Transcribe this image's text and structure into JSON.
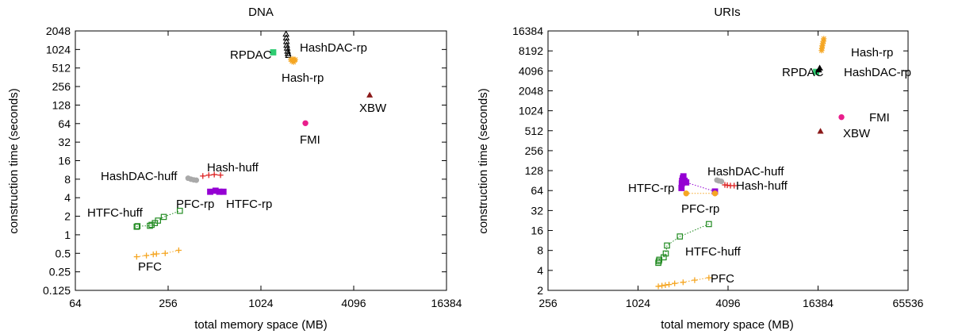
{
  "chart_data": [
    {
      "type": "scatter",
      "title": "DNA",
      "xlabel": "total memory space (MB)",
      "ylabel": "construction time (seconds)",
      "x_scale": "log2",
      "y_scale": "log2",
      "xlim": [
        64,
        16384
      ],
      "ylim": [
        0.125,
        2048
      ],
      "x_ticks": [
        "64",
        "256",
        "1024",
        "4096",
        "16384"
      ],
      "y_ticks": [
        "0.125",
        "0.25",
        "0.5",
        "1",
        "2",
        "4",
        "8",
        "16",
        "32",
        "64",
        "128",
        "256",
        "512",
        "1024",
        "2048"
      ],
      "grid": false,
      "legend": "none",
      "series": [
        {
          "name": "PFC",
          "color": "#f5a623",
          "marker": "plus",
          "line": true,
          "points": [
            [
              160,
              0.44
            ],
            [
              185,
              0.46
            ],
            [
              205,
              0.48
            ],
            [
              215,
              0.49
            ],
            [
              245,
              0.5
            ],
            [
              300,
              0.56
            ]
          ]
        },
        {
          "name": "HTFC-huff",
          "color": "#228b22",
          "marker": "square-open",
          "line": true,
          "points": [
            [
              160,
              1.35
            ],
            [
              162,
              1.38
            ],
            [
              195,
              1.4
            ],
            [
              200,
              1.45
            ],
            [
              210,
              1.55
            ],
            [
              220,
              1.7
            ],
            [
              240,
              1.95
            ],
            [
              305,
              2.45
            ]
          ]
        },
        {
          "name": "PFC-rp",
          "color": "#228b22",
          "marker": "square-open",
          "line": false,
          "points": []
        },
        {
          "name": "HTFC-rp",
          "color": "#9400d3",
          "marker": "square-filled",
          "line": true,
          "points": [
            [
              480,
              5.0
            ],
            [
              520,
              5.2
            ],
            [
              550,
              5.0
            ],
            [
              585,
              5.0
            ]
          ]
        },
        {
          "name": "HashDAC-huff",
          "color": "#a9a9a9",
          "marker": "circle",
          "line": true,
          "points": [
            [
              345,
              8.3
            ],
            [
              360,
              8.0
            ],
            [
              375,
              7.8
            ],
            [
              390,
              7.7
            ]
          ]
        },
        {
          "name": "Hash-huff",
          "color": "#dd2222",
          "marker": "plus",
          "line": true,
          "points": [
            [
              430,
              9.0
            ],
            [
              470,
              9.3
            ],
            [
              510,
              9.5
            ],
            [
              560,
              9.3
            ]
          ]
        },
        {
          "name": "RPDAC",
          "color": "#2ecc71",
          "marker": "square-filled",
          "line": false,
          "points": [
            [
              1230,
              920
            ]
          ]
        },
        {
          "name": "HashDAC-rp",
          "color": "#000000",
          "marker": "triangle-open",
          "line": false,
          "points": [
            [
              1490,
              1820
            ],
            [
              1495,
              1580
            ],
            [
              1500,
              1380
            ],
            [
              1505,
              1200
            ],
            [
              1515,
              1080
            ],
            [
              1525,
              960
            ],
            [
              1535,
              880
            ],
            [
              1545,
              820
            ]
          ]
        },
        {
          "name": "Hash-rp",
          "color": "#f5a623",
          "marker": "star",
          "line": false,
          "points": [
            [
              1600,
              700
            ],
            [
              1630,
              660
            ],
            [
              1650,
              720
            ],
            [
              1670,
              640
            ],
            [
              1690,
              680
            ],
            [
              1710,
              700
            ]
          ]
        },
        {
          "name": "FMI",
          "color": "#e91e8c",
          "marker": "circle-filled",
          "line": false,
          "points": [
            [
              1990,
              65
            ]
          ]
        },
        {
          "name": "XBW",
          "color": "#8b1a1a",
          "marker": "triangle-filled",
          "line": false,
          "points": [
            [
              5200,
              185
            ]
          ]
        }
      ],
      "annotations": [
        "HashDAC-rp",
        "RPDAC",
        "Hash-rp",
        "XBW",
        "FMI",
        "HashDAC-huff",
        "Hash-huff",
        "PFC-rp",
        "HTFC-rp",
        "HTFC-huff",
        "PFC"
      ]
    },
    {
      "type": "scatter",
      "title": "URIs",
      "xlabel": "total memory space (MB)",
      "ylabel": "construction time (seconds)",
      "x_scale": "log2",
      "y_scale": "log2",
      "xlim": [
        256,
        65536
      ],
      "ylim": [
        2,
        16384
      ],
      "x_ticks": [
        "256",
        "1024",
        "4096",
        "16384",
        "65536"
      ],
      "y_ticks": [
        "2",
        "4",
        "8",
        "16",
        "32",
        "64",
        "128",
        "256",
        "512",
        "1024",
        "2048",
        "4096",
        "8192",
        "16384"
      ],
      "grid": false,
      "legend": "none",
      "series": [
        {
          "name": "PFC",
          "color": "#f5a623",
          "marker": "plus",
          "line": true,
          "points": [
            [
              1400,
              2.3
            ],
            [
              1480,
              2.35
            ],
            [
              1560,
              2.4
            ],
            [
              1650,
              2.45
            ],
            [
              1800,
              2.55
            ],
            [
              2050,
              2.65
            ],
            [
              2450,
              2.85
            ],
            [
              3050,
              3.1
            ]
          ]
        },
        {
          "name": "HTFC-huff",
          "color": "#228b22",
          "marker": "square-open",
          "line": true,
          "points": [
            [
              1400,
              5.2
            ],
            [
              1410,
              5.5
            ],
            [
              1420,
              5.8
            ],
            [
              1520,
              6.3
            ],
            [
              1570,
              7.2
            ],
            [
              1600,
              9.5
            ],
            [
              1950,
              13
            ],
            [
              3050,
              20
            ]
          ]
        },
        {
          "name": "HTFC-rp",
          "color": "#9400d3",
          "marker": "square-filled",
          "line": true,
          "points": [
            [
              2000,
              70
            ],
            [
              2010,
              82
            ],
            [
              2020,
              90
            ],
            [
              2040,
              98
            ],
            [
              2060,
              105
            ],
            [
              2100,
              90
            ],
            [
              2150,
              85
            ],
            [
              3350,
              62
            ]
          ]
        },
        {
          "name": "PFC-rp",
          "color": "#f5a623",
          "marker": "circle-filled",
          "line": true,
          "points": [
            [
              2150,
              58
            ],
            [
              3350,
              58
            ]
          ]
        },
        {
          "name": "HashDAC-huff",
          "color": "#a9a9a9",
          "marker": "circle",
          "line": true,
          "points": [
            [
              3450,
              92
            ],
            [
              3550,
              90
            ],
            [
              3700,
              88
            ]
          ]
        },
        {
          "name": "Hash-huff",
          "color": "#dd2222",
          "marker": "plus",
          "line": true,
          "points": [
            [
              3900,
              78
            ],
            [
              4050,
              77
            ],
            [
              4250,
              76
            ],
            [
              4500,
              76
            ]
          ]
        },
        {
          "name": "RPDAC",
          "color": "#2ecc71",
          "marker": "square-filled",
          "line": false,
          "points": [
            [
              15900,
              3950
            ]
          ]
        },
        {
          "name": "HashDAC-rp",
          "color": "#000000",
          "marker": "triangle-filled",
          "line": false,
          "points": [
            [
              16600,
              4200
            ],
            [
              16800,
              4500
            ]
          ]
        },
        {
          "name": "Hash-rp",
          "color": "#f5a623",
          "marker": "star",
          "line": false,
          "points": [
            [
              17300,
              8300
            ],
            [
              17400,
              9000
            ],
            [
              17500,
              9800
            ],
            [
              17600,
              10500
            ],
            [
              17800,
              11500
            ],
            [
              17900,
              12500
            ]
          ]
        },
        {
          "name": "FMI",
          "color": "#e91e8c",
          "marker": "circle-filled",
          "line": false,
          "points": [
            [
              23500,
              820
            ]
          ]
        },
        {
          "name": "XBW",
          "color": "#8b1a1a",
          "marker": "triangle-filled",
          "line": false,
          "points": [
            [
              17000,
              500
            ]
          ]
        }
      ],
      "annotations": [
        "Hash-rp",
        "RPDAC",
        "HashDAC-rp",
        "FMI",
        "XBW",
        "HashDAC-huff",
        "HTFC-rp",
        "Hash-huff",
        "PFC-rp",
        "HTFC-huff",
        "PFC"
      ]
    }
  ]
}
